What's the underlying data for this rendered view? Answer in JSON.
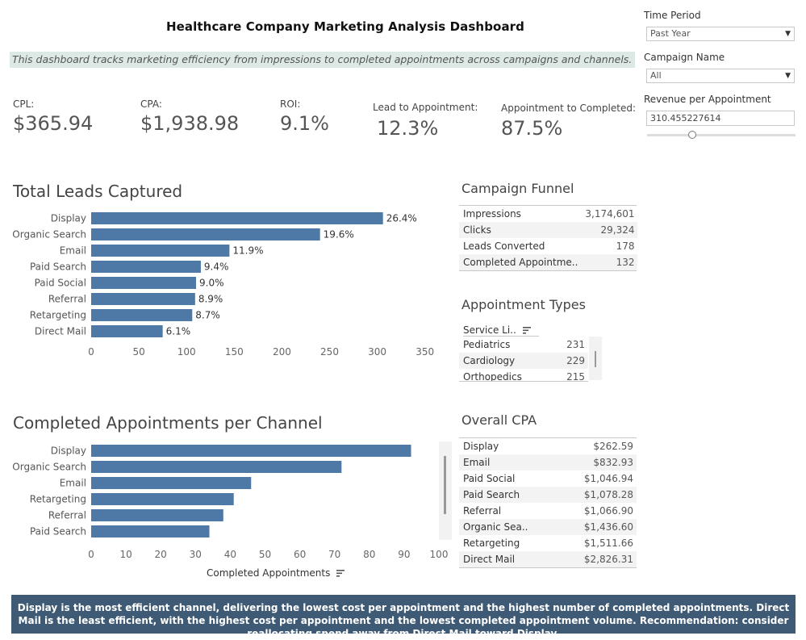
{
  "header": {
    "title": "Healthcare Company Marketing Analysis Dashboard",
    "subtitle": "This dashboard tracks marketing efficiency from impressions to completed appointments across campaigns and channels."
  },
  "filters": {
    "time_period": {
      "label": "Time Period",
      "value": "Past Year"
    },
    "campaign_name": {
      "label": "Campaign Name",
      "value": "All"
    },
    "revenue_per_appointment": {
      "label": "Revenue per Appointment",
      "value": "310.455227614"
    }
  },
  "kpis": [
    {
      "label": "CPL:",
      "value": "$365.94"
    },
    {
      "label": "CPA:",
      "value": "$1,938.98"
    },
    {
      "label": "ROI:",
      "value": "9.1%"
    },
    {
      "label": "Lead to Appointment:",
      "value": "12.3%"
    },
    {
      "label": "Appointment to Completed:",
      "value": "87.5%"
    }
  ],
  "leads_chart": {
    "title": "Total Leads Captured"
  },
  "appointments_chart": {
    "title": "Completed Appointments per Channel",
    "xlabel": "Completed Appointments"
  },
  "chart_data": [
    {
      "type": "bar",
      "orientation": "horizontal",
      "title": "Total Leads Captured",
      "categories": [
        "Display",
        "Organic Search",
        "Email",
        "Paid Search",
        "Paid Social",
        "Referral",
        "Retargeting",
        "Direct Mail"
      ],
      "values": [
        306,
        240,
        145,
        115,
        110,
        109,
        106,
        75
      ],
      "data_labels": [
        "26.4%",
        "19.6%",
        "11.9%",
        "9.4%",
        "9.0%",
        "8.9%",
        "8.7%",
        "6.1%"
      ],
      "xlim": [
        0,
        360
      ],
      "xticks": [
        0,
        50,
        100,
        150,
        200,
        250,
        300,
        350
      ],
      "grid": false
    },
    {
      "type": "bar",
      "orientation": "horizontal",
      "title": "Completed Appointments per Channel",
      "xlabel": "Completed Appointments",
      "categories": [
        "Display",
        "Organic Search",
        "Email",
        "Retargeting",
        "Referral",
        "Paid Search"
      ],
      "values": [
        92,
        72,
        46,
        41,
        38,
        34
      ],
      "xlim": [
        0,
        100
      ],
      "xticks": [
        0,
        10,
        20,
        30,
        40,
        50,
        60,
        70,
        80,
        90,
        100
      ],
      "grid": false
    }
  ],
  "funnel": {
    "title": "Campaign Funnel",
    "rows": [
      {
        "label": "Impressions",
        "value": "3,174,601"
      },
      {
        "label": "Clicks",
        "value": "29,324"
      },
      {
        "label": "Leads Converted",
        "value": "178"
      },
      {
        "label": "Completed Appointme..",
        "value": "132"
      }
    ]
  },
  "appointment_types": {
    "title": "Appointment Types",
    "column_header": "Service Li..",
    "rows": [
      {
        "label": "Pediatrics",
        "value": "231"
      },
      {
        "label": "Cardiology",
        "value": "229"
      },
      {
        "label": "Orthopedics",
        "value": "215"
      }
    ]
  },
  "overall_cpa": {
    "title": "Overall CPA",
    "rows": [
      {
        "label": "Display",
        "value": "$262.59"
      },
      {
        "label": "Email",
        "value": "$832.93"
      },
      {
        "label": "Paid Social",
        "value": "$1,046.94"
      },
      {
        "label": "Paid Search",
        "value": "$1,078.28"
      },
      {
        "label": "Referral",
        "value": "$1,066.90"
      },
      {
        "label": "Organic Sea..",
        "value": "$1,436.60"
      },
      {
        "label": "Retargeting",
        "value": "$1,511.66"
      },
      {
        "label": "Direct Mail",
        "value": "$2,826.31"
      }
    ]
  },
  "footer": {
    "text": "Display is the most efficient channel, delivering the lowest cost per appointment and the highest number of completed appointments. Direct Mail is the least efficient, with the highest cost per appointment and the lowest completed appointment volume. Recommendation: consider reallocating spend away from Direct Mail toward Display."
  },
  "colors": {
    "bar": "#4e79a7",
    "subtitle_bg": "#dde9e4",
    "footer_bg": "#3f5a75"
  }
}
